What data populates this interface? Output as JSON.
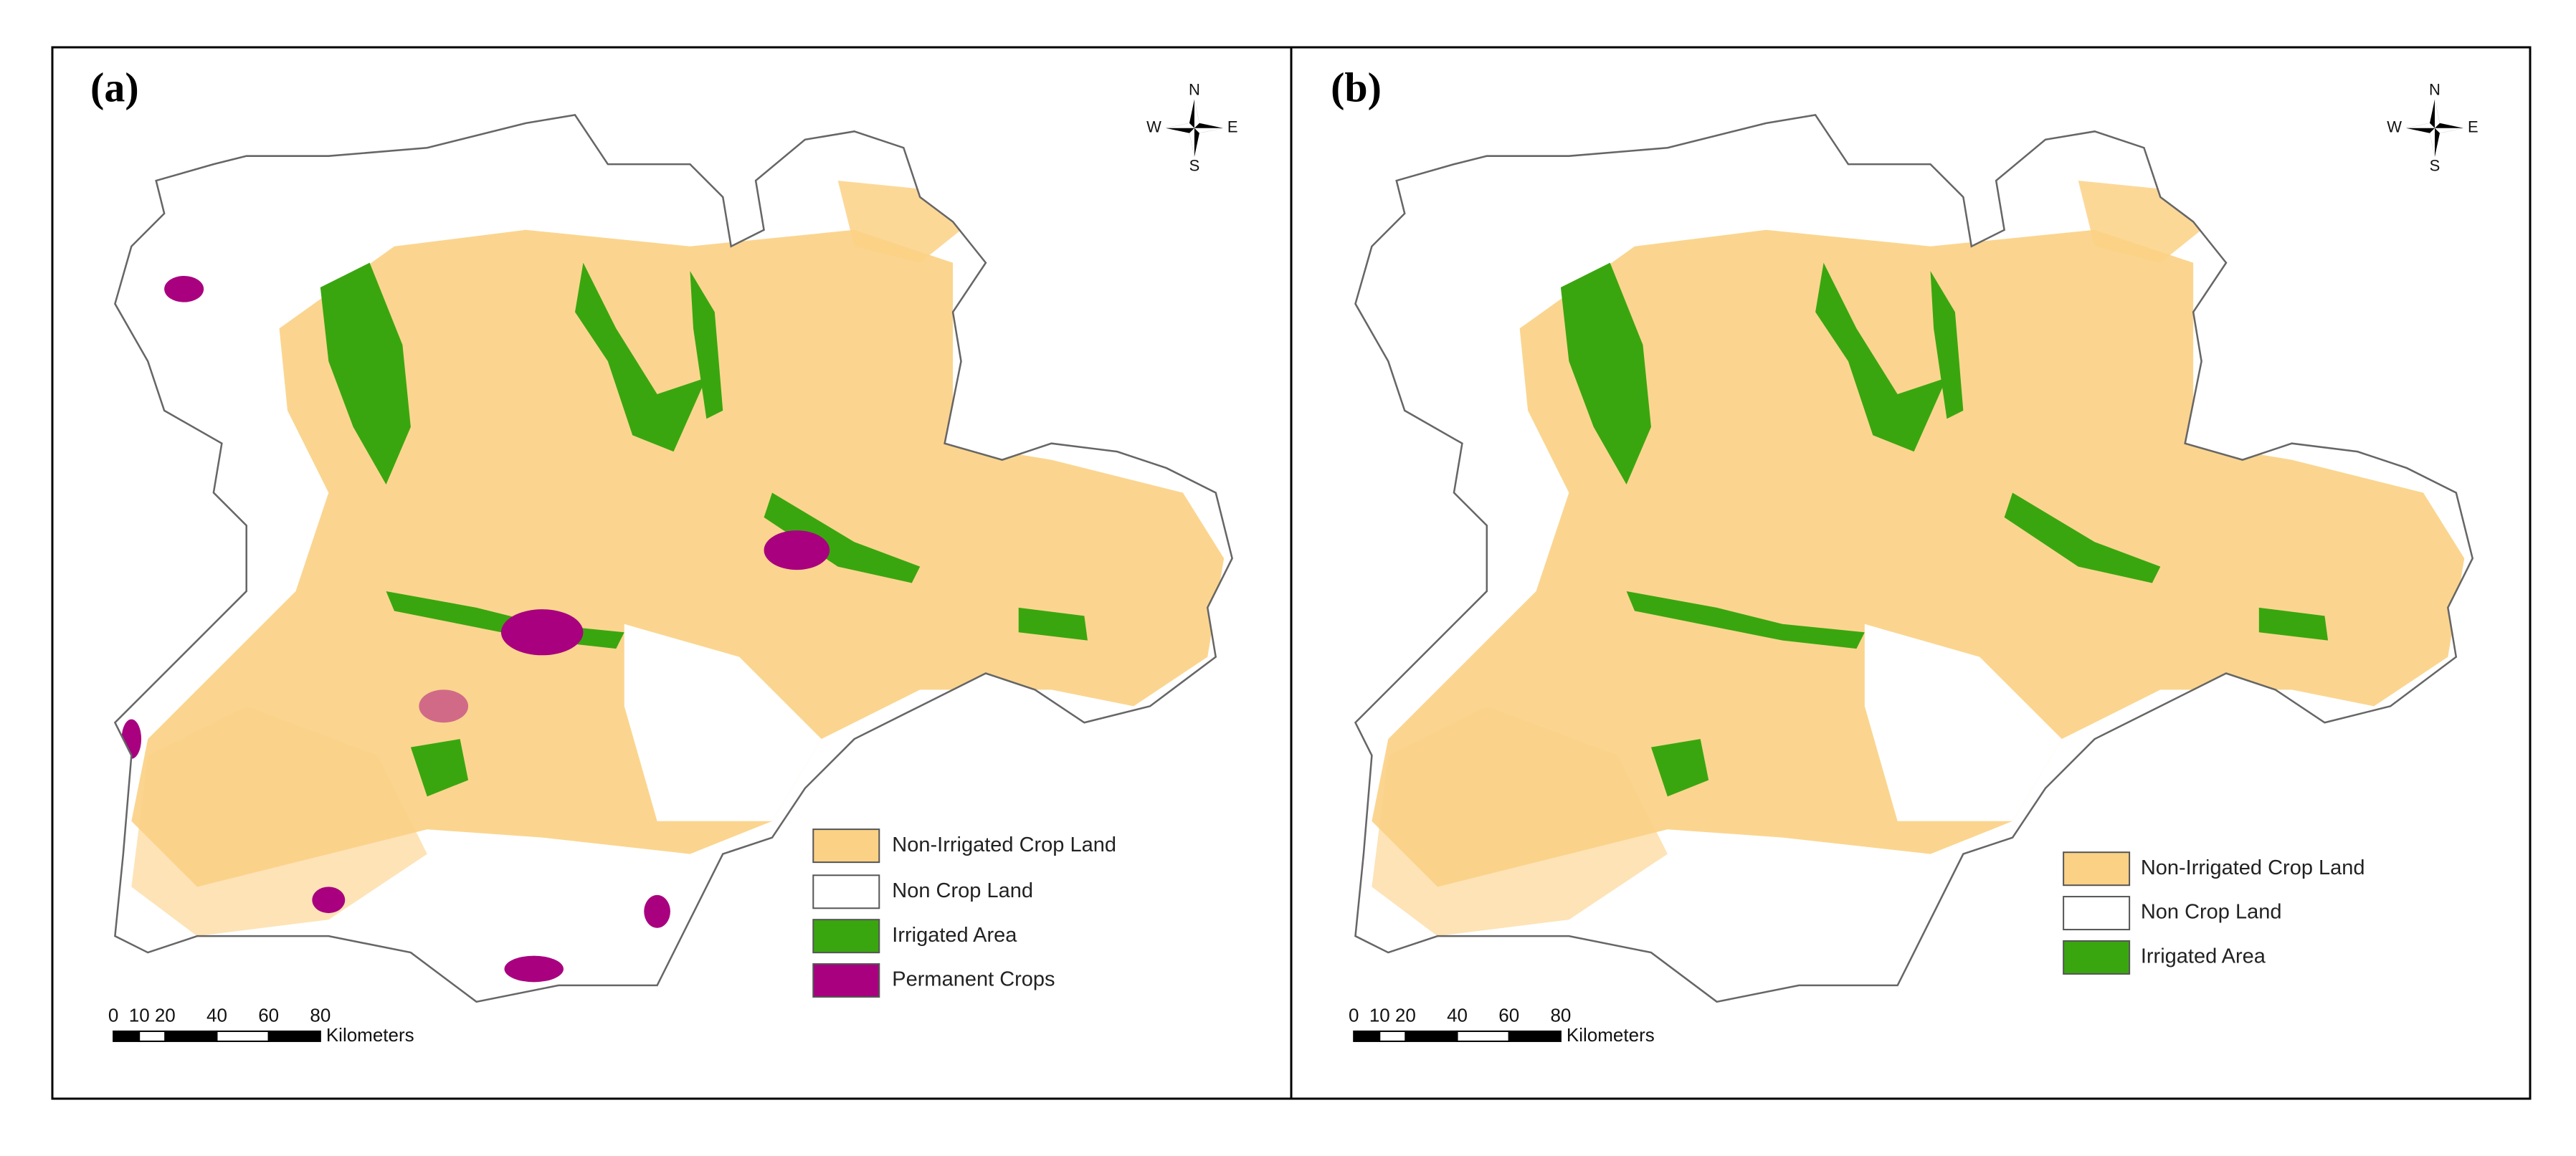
{
  "panels": [
    {
      "label": "(a)",
      "compass": {
        "north": "N",
        "south": "S",
        "east": "E",
        "west": "W"
      },
      "legend": [
        {
          "label": "Non-Irrigated Crop Land",
          "color": "#fbd185"
        },
        {
          "label": "Non Crop Land",
          "color": "#ffffff"
        },
        {
          "label": "Irrigated Area",
          "color": "#3aa60f"
        },
        {
          "label": "Permanent Crops",
          "color": "#a8007f"
        }
      ],
      "scale_bar": {
        "ticks": [
          0,
          10,
          20,
          40,
          60,
          80
        ],
        "unit": "Kilometers"
      }
    },
    {
      "label": "(b)",
      "compass": {
        "north": "N",
        "south": "S",
        "east": "E",
        "west": "W"
      },
      "legend": [
        {
          "label": "Non-Irrigated Crop Land",
          "color": "#fbd185"
        },
        {
          "label": "Non Crop Land",
          "color": "#ffffff"
        },
        {
          "label": "Irrigated Area",
          "color": "#3aa60f"
        }
      ],
      "scale_bar": {
        "ticks": [
          0,
          10,
          20,
          40,
          60,
          80
        ],
        "unit": "Kilometers"
      }
    }
  ]
}
